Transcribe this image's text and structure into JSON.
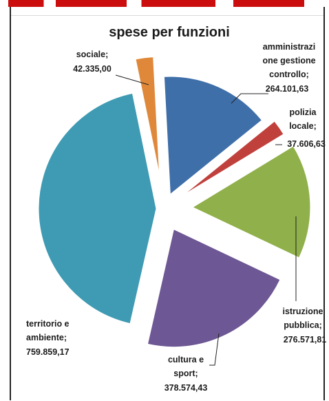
{
  "chart_data": {
    "type": "pie",
    "title": "spese per funzioni",
    "slices": [
      {
        "label": "amministrazi one gestione controllo",
        "value_label": "264.101,63",
        "value": 264101.63,
        "color": "#3f6fa9"
      },
      {
        "label": "polizia locale",
        "value_label": "37.606,63",
        "value": 37606.63,
        "color": "#c0403c"
      },
      {
        "label": "istruzione pubblica",
        "value_label": "276.571,81",
        "value": 276571.81,
        "color": "#8fb04a"
      },
      {
        "label": "cultura e sport",
        "value_label": "378.574,43",
        "value": 378574.43,
        "color": "#6d5794"
      },
      {
        "label": "territorio e ambiente",
        "value_label": "759.859,17",
        "value": 759859.17,
        "color": "#3e9bb3"
      },
      {
        "label": "sociale",
        "value_label": "42.335,00",
        "value": 42335.0,
        "color": "#e0883a"
      }
    ],
    "legend": "none"
  }
}
